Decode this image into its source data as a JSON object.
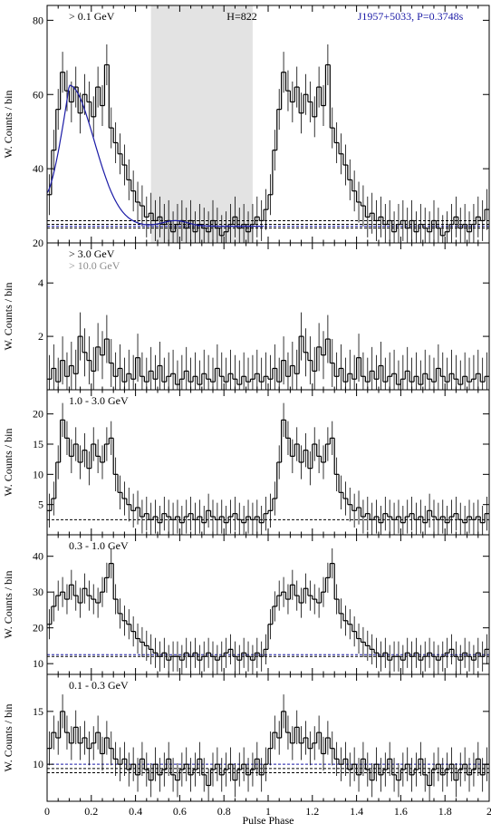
{
  "figure": {
    "xlabel": "Pulse Phase",
    "xticklabels": [
      "0",
      "0.2",
      "0.4",
      "0.6",
      "0.8",
      "1",
      "1.2",
      "1.4",
      "1.6",
      "1.8",
      "2"
    ]
  },
  "colors": {
    "axis": "#000000",
    "histogram": "#000000",
    "fit_curve": "#1a1aa6",
    "source_label": "#1a1aa6",
    "offpulse_shade": "#e3e3e3",
    "secondary_label": "#8c8c8c"
  },
  "chart_data": [
    {
      "type": "line",
      "panel": "top",
      "energy_label": "> 0.1 GeV",
      "h_label": "H=822",
      "source_label": "J1957+5033, P=0.3748s",
      "ylabel": "W. Counts / bin",
      "xlim": [
        0,
        2
      ],
      "ylim": [
        20,
        84
      ],
      "yticks": [
        20,
        40,
        60,
        80
      ],
      "offpulse_region": [
        0.47,
        0.93
      ],
      "background_lines": [
        24.0,
        25.0,
        26.0
      ],
      "fit_background": 24.5,
      "fit_curve_range": [
        0.0,
        0.98
      ],
      "bins_per_cycle": 50,
      "bin_values_cycle": [
        33,
        45,
        56,
        66,
        61,
        58,
        62,
        55,
        60,
        58,
        54,
        62,
        57,
        68,
        51,
        47,
        44,
        41,
        37,
        34,
        31,
        30,
        27,
        28,
        26,
        27,
        25,
        26,
        23,
        25,
        26,
        24,
        26,
        23,
        25,
        24,
        23,
        26,
        24,
        22,
        23,
        25,
        27,
        24,
        25,
        23,
        25,
        27,
        26,
        29
      ],
      "error_bar": 5.5
    },
    {
      "type": "line",
      "panel": "high",
      "energy_label": "> 3.0 GeV",
      "secondary_label": "> 10.0 GeV",
      "ylabel": "W. Counts / bin",
      "xlim": [
        0,
        2
      ],
      "ylim": [
        0,
        5.5
      ],
      "yticks": [
        2,
        4
      ],
      "background_lines": [
        0.0
      ],
      "bins_per_cycle": 50,
      "bin_values_cycle": [
        0.4,
        0.8,
        0.3,
        1.1,
        0.5,
        0.9,
        0.6,
        2.0,
        1.4,
        1.1,
        0.7,
        1.6,
        1.3,
        1.9,
        1.0,
        0.5,
        0.8,
        0.3,
        0.6,
        0.4,
        1.2,
        0.5,
        0.3,
        0.7,
        0.4,
        0.9,
        0.3,
        0.5,
        0.6,
        0.2,
        0.4,
        0.7,
        0.3,
        0.5,
        0.2,
        0.6,
        0.4,
        0.3,
        0.8,
        0.5,
        0.3,
        0.6,
        0.4,
        0.2,
        0.5,
        0.3,
        0.4,
        0.6,
        0.3,
        0.5
      ],
      "error_bar": 0.9
    },
    {
      "type": "line",
      "panel": "mid-high",
      "energy_label": "1.0 - 3.0 GeV",
      "ylabel": "W. Counts / bin",
      "xlim": [
        0,
        2
      ],
      "ylim": [
        0,
        24
      ],
      "yticks": [
        5,
        10,
        15,
        20
      ],
      "background_lines": [
        2.5
      ],
      "bins_per_cycle": 50,
      "bin_values_cycle": [
        4,
        6,
        12,
        19,
        16,
        13,
        15,
        12,
        14,
        11,
        15,
        13,
        12,
        15,
        16,
        10,
        7,
        6,
        5,
        4,
        4.5,
        3,
        3.5,
        2.5,
        3,
        2,
        3.5,
        3,
        2.5,
        3,
        2,
        3,
        3.5,
        2.5,
        3,
        2,
        4,
        3,
        2.5,
        3,
        2,
        3,
        3.5,
        2.5,
        2,
        3,
        2.5,
        3,
        2,
        3.5
      ],
      "error_bar": 2.8
    },
    {
      "type": "line",
      "panel": "mid-low",
      "energy_label": "0.3 - 1.0 GeV",
      "ylabel": "W. Counts / bin",
      "xlim": [
        0,
        2
      ],
      "ylim": [
        7,
        46
      ],
      "yticks": [
        10,
        20,
        30,
        40
      ],
      "background_lines": [
        12.0
      ],
      "fit_background": 12.5,
      "bins_per_cycle": 50,
      "bin_values_cycle": [
        21,
        26,
        29,
        30,
        28,
        32,
        29,
        27,
        31,
        29,
        28,
        27,
        30,
        34,
        38,
        28,
        24,
        22,
        21,
        19,
        17,
        16,
        15,
        14,
        13,
        12,
        13,
        11,
        12,
        12,
        11,
        13,
        12,
        13,
        11,
        12,
        13,
        12,
        11,
        12,
        13,
        14,
        12,
        11,
        13,
        12,
        11,
        13,
        12,
        14
      ],
      "error_bar": 4.2
    },
    {
      "type": "line",
      "panel": "low",
      "energy_label": "0.1 - 0.3 GeV",
      "ylabel": "W. Counts / bin",
      "xlim": [
        0,
        2
      ],
      "ylim": [
        6.5,
        18.5
      ],
      "yticks": [
        10,
        15
      ],
      "background_lines": [
        9.2,
        9.6
      ],
      "fit_background": 10.0,
      "bins_per_cycle": 50,
      "bin_values_cycle": [
        11.5,
        13.0,
        12.5,
        15.0,
        13.0,
        12.0,
        13.5,
        12.0,
        12.5,
        11.5,
        12.0,
        13.0,
        11.0,
        12.5,
        11.5,
        10.5,
        10.0,
        10.5,
        9.5,
        10.0,
        9.0,
        10.5,
        9.5,
        8.5,
        10.0,
        9.0,
        9.5,
        10.5,
        9.0,
        8.5,
        9.5,
        10.0,
        9.0,
        9.5,
        10.5,
        9.0,
        8.0,
        9.5,
        10.0,
        9.0,
        9.5,
        10.0,
        8.5,
        9.5,
        10.0,
        9.0,
        9.5,
        10.5,
        9.0,
        10.0
      ],
      "error_bar": 1.6
    }
  ]
}
